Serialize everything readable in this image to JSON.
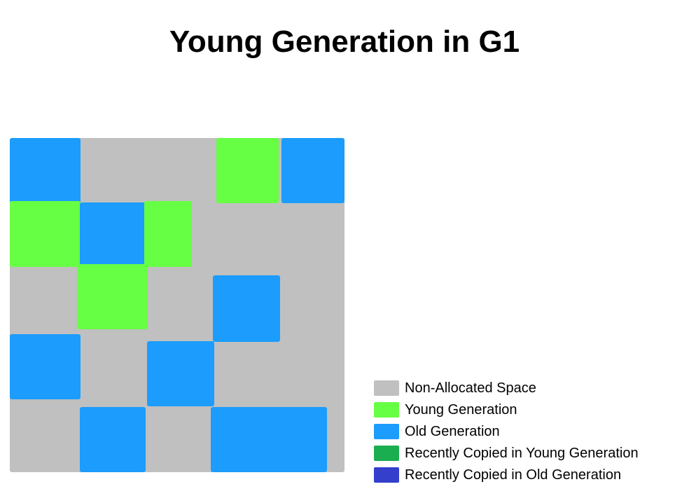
{
  "title": "Young Generation in G1",
  "colors": {
    "non_allocated": "#c0c0c0",
    "young": "#66ff44",
    "old": "#1c9cfc",
    "recent_young": "#1aae50",
    "recent_old": "#3440cc"
  },
  "regions": [
    {
      "kind": "old"
    },
    {
      "kind": "young"
    },
    {
      "kind": "old"
    },
    {
      "kind": "young"
    },
    {
      "kind": "old"
    },
    {
      "kind": "young"
    },
    {
      "kind": "young"
    },
    {
      "kind": "old"
    },
    {
      "kind": "old"
    },
    {
      "kind": "old"
    },
    {
      "kind": "old"
    },
    {
      "kind": "old"
    }
  ],
  "legend": [
    {
      "label": "Non-Allocated Space",
      "kind": "non_allocated"
    },
    {
      "label": "Young Generation",
      "kind": "young"
    },
    {
      "label": "Old Generation",
      "kind": "old"
    },
    {
      "label": "Recently Copied in Young Generation",
      "kind": "recent_young"
    },
    {
      "label": "Recently Copied in Old Generation",
      "kind": "recent_old"
    }
  ]
}
